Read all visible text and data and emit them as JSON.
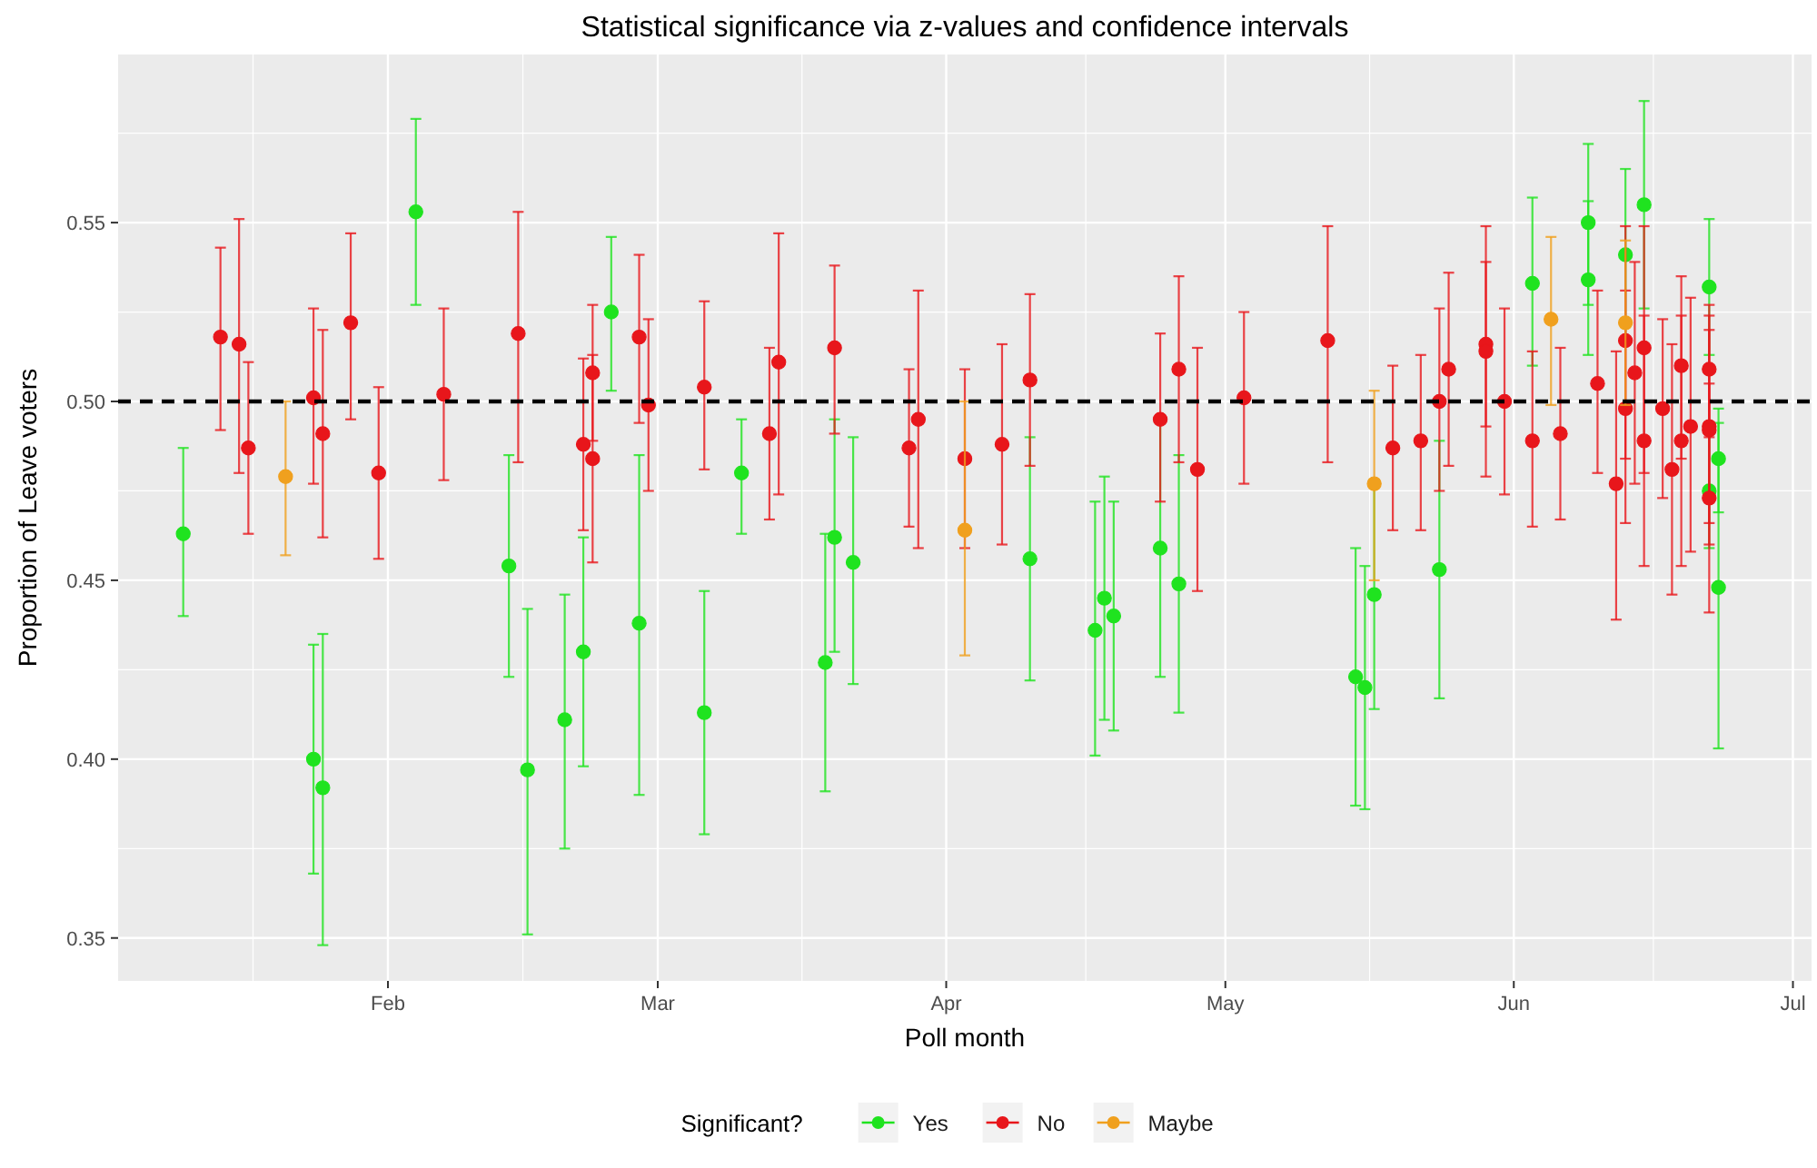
{
  "chart_data": {
    "type": "scatter",
    "title": "Statistical significance via z-values and confidence intervals",
    "xlabel": "Poll month",
    "ylabel": "Proportion of Leave voters",
    "legend_title": "Significant?",
    "legend": "bottom",
    "grid": true,
    "marker": "circle",
    "xlim": [
      "--01-03",
      "--07-03"
    ],
    "xticks": [
      {
        "value": "--02-01",
        "label": "Feb"
      },
      {
        "value": "--03-01",
        "label": "Mar"
      },
      {
        "value": "--04-01",
        "label": "Apr"
      },
      {
        "value": "--05-01",
        "label": "May"
      },
      {
        "value": "--06-01",
        "label": "Jun"
      },
      {
        "value": "--07-01",
        "label": "Jul"
      }
    ],
    "ylim": [
      0.338,
      0.597
    ],
    "yticks": [
      {
        "value": 0.35,
        "label": "0.35"
      },
      {
        "value": 0.4,
        "label": "0.40"
      },
      {
        "value": 0.45,
        "label": "0.45"
      },
      {
        "value": 0.5,
        "label": "0.50"
      },
      {
        "value": 0.55,
        "label": "0.55"
      }
    ],
    "ref_lines": [
      {
        "axis": "y",
        "value": 0.5,
        "label": null,
        "color": "#000000",
        "line_style": "dashed"
      }
    ],
    "series": [
      {
        "name": "Yes",
        "color": "#1fe31f",
        "x": [
          "--01-10",
          "--01-24",
          "--01-25",
          "--02-04",
          "--02-14",
          "--02-16",
          "--02-20",
          "--02-22",
          "--02-25",
          "--02-28",
          "--03-06",
          "--03-10",
          "--03-19",
          "--03-20",
          "--03-22",
          "--04-10",
          "--04-17",
          "--04-18",
          "--04-19",
          "--04-24",
          "--04-26",
          "--05-15",
          "--05-16",
          "--05-17",
          "--05-24",
          "--06-03",
          "--06-09",
          "--06-09",
          "--06-13",
          "--06-15",
          "--06-22",
          "--06-22",
          "--06-23",
          "--06-23"
        ],
        "values": [
          0.463,
          0.4,
          0.392,
          0.553,
          0.454,
          0.397,
          0.411,
          0.43,
          0.525,
          0.438,
          0.413,
          0.48,
          0.427,
          0.462,
          0.455,
          0.456,
          0.436,
          0.445,
          0.44,
          0.459,
          0.449,
          0.423,
          0.42,
          0.446,
          0.453,
          0.533,
          0.55,
          0.534,
          0.541,
          0.555,
          0.532,
          0.475,
          0.484,
          0.448
        ],
        "errors": [
          [
            0.44,
            0.487
          ],
          [
            0.368,
            0.432
          ],
          [
            0.348,
            0.435
          ],
          [
            0.527,
            0.579
          ],
          [
            0.423,
            0.485
          ],
          [
            0.351,
            0.442
          ],
          [
            0.375,
            0.446
          ],
          [
            0.398,
            0.462
          ],
          [
            0.503,
            0.546
          ],
          [
            0.39,
            0.485
          ],
          [
            0.379,
            0.447
          ],
          [
            0.463,
            0.495
          ],
          [
            0.391,
            0.463
          ],
          [
            0.43,
            0.495
          ],
          [
            0.421,
            0.49
          ],
          [
            0.422,
            0.49
          ],
          [
            0.401,
            0.472
          ],
          [
            0.411,
            0.479
          ],
          [
            0.408,
            0.472
          ],
          [
            0.423,
            0.494
          ],
          [
            0.413,
            0.485
          ],
          [
            0.387,
            0.459
          ],
          [
            0.386,
            0.454
          ],
          [
            0.414,
            0.478
          ],
          [
            0.417,
            0.489
          ],
          [
            0.51,
            0.557
          ],
          [
            0.527,
            0.572
          ],
          [
            0.513,
            0.556
          ],
          [
            0.517,
            0.565
          ],
          [
            0.526,
            0.584
          ],
          [
            0.513,
            0.551
          ],
          [
            0.459,
            0.491
          ],
          [
            0.469,
            0.498
          ],
          [
            0.403,
            0.494
          ]
        ]
      },
      {
        "name": "No",
        "color": "#e8161b",
        "x": [
          "--01-14",
          "--01-16",
          "--01-17",
          "--01-24",
          "--01-25",
          "--01-28",
          "--01-31",
          "--02-07",
          "--02-15",
          "--02-22",
          "--02-23",
          "--02-23",
          "--02-28",
          "--02-29",
          "--03-06",
          "--03-13",
          "--03-14",
          "--03-20",
          "--03-28",
          "--03-29",
          "--04-03",
          "--04-07",
          "--04-10",
          "--04-24",
          "--04-26",
          "--04-28",
          "--05-03",
          "--05-12",
          "--05-19",
          "--05-22",
          "--05-24",
          "--05-25",
          "--05-29",
          "--05-29",
          "--05-31",
          "--06-03",
          "--06-06",
          "--06-10",
          "--06-12",
          "--06-13",
          "--06-13",
          "--06-14",
          "--06-15",
          "--06-15",
          "--06-17",
          "--06-18",
          "--06-19",
          "--06-19",
          "--06-20",
          "--06-22",
          "--06-22",
          "--06-22",
          "--06-22"
        ],
        "values": [
          0.518,
          0.516,
          0.487,
          0.501,
          0.491,
          0.522,
          0.48,
          0.502,
          0.519,
          0.488,
          0.508,
          0.484,
          0.518,
          0.499,
          0.504,
          0.491,
          0.511,
          0.515,
          0.487,
          0.495,
          0.484,
          0.488,
          0.506,
          0.495,
          0.509,
          0.481,
          0.501,
          0.517,
          0.487,
          0.489,
          0.5,
          0.509,
          0.516,
          0.514,
          0.5,
          0.489,
          0.491,
          0.505,
          0.477,
          0.517,
          0.498,
          0.508,
          0.515,
          0.489,
          0.498,
          0.481,
          0.51,
          0.489,
          0.493,
          0.509,
          0.493,
          0.492,
          0.473
        ],
        "errors": [
          [
            0.492,
            0.543
          ],
          [
            0.48,
            0.551
          ],
          [
            0.463,
            0.511
          ],
          [
            0.477,
            0.526
          ],
          [
            0.462,
            0.52
          ],
          [
            0.495,
            0.547
          ],
          [
            0.456,
            0.504
          ],
          [
            0.478,
            0.526
          ],
          [
            0.483,
            0.553
          ],
          [
            0.464,
            0.512
          ],
          [
            0.489,
            0.527
          ],
          [
            0.455,
            0.513
          ],
          [
            0.494,
            0.541
          ],
          [
            0.475,
            0.523
          ],
          [
            0.481,
            0.528
          ],
          [
            0.467,
            0.515
          ],
          [
            0.474,
            0.547
          ],
          [
            0.491,
            0.538
          ],
          [
            0.465,
            0.509
          ],
          [
            0.459,
            0.531
          ],
          [
            0.459,
            0.509
          ],
          [
            0.46,
            0.516
          ],
          [
            0.482,
            0.53
          ],
          [
            0.472,
            0.519
          ],
          [
            0.483,
            0.535
          ],
          [
            0.447,
            0.515
          ],
          [
            0.477,
            0.525
          ],
          [
            0.483,
            0.549
          ],
          [
            0.464,
            0.51
          ],
          [
            0.464,
            0.513
          ],
          [
            0.475,
            0.526
          ],
          [
            0.482,
            0.536
          ],
          [
            0.493,
            0.549
          ],
          [
            0.479,
            0.539
          ],
          [
            0.474,
            0.526
          ],
          [
            0.465,
            0.514
          ],
          [
            0.467,
            0.515
          ],
          [
            0.48,
            0.531
          ],
          [
            0.439,
            0.514
          ],
          [
            0.484,
            0.549
          ],
          [
            0.466,
            0.531
          ],
          [
            0.477,
            0.539
          ],
          [
            0.48,
            0.549
          ],
          [
            0.454,
            0.524
          ],
          [
            0.473,
            0.523
          ],
          [
            0.446,
            0.516
          ],
          [
            0.484,
            0.535
          ],
          [
            0.454,
            0.524
          ],
          [
            0.458,
            0.529
          ],
          [
            0.49,
            0.527
          ],
          [
            0.466,
            0.52
          ],
          [
            0.46,
            0.524
          ],
          [
            0.441,
            0.505
          ]
        ]
      },
      {
        "name": "Maybe",
        "color": "#f0a01e",
        "x": [
          "--01-21",
          "--04-03",
          "--05-17",
          "--06-05",
          "--06-13"
        ],
        "values": [
          0.479,
          0.464,
          0.477,
          0.523,
          0.522
        ],
        "errors": [
          [
            0.457,
            0.5
          ],
          [
            0.429,
            0.5
          ],
          [
            0.45,
            0.503
          ],
          [
            0.499,
            0.546
          ],
          [
            0.499,
            0.545
          ]
        ]
      }
    ]
  }
}
